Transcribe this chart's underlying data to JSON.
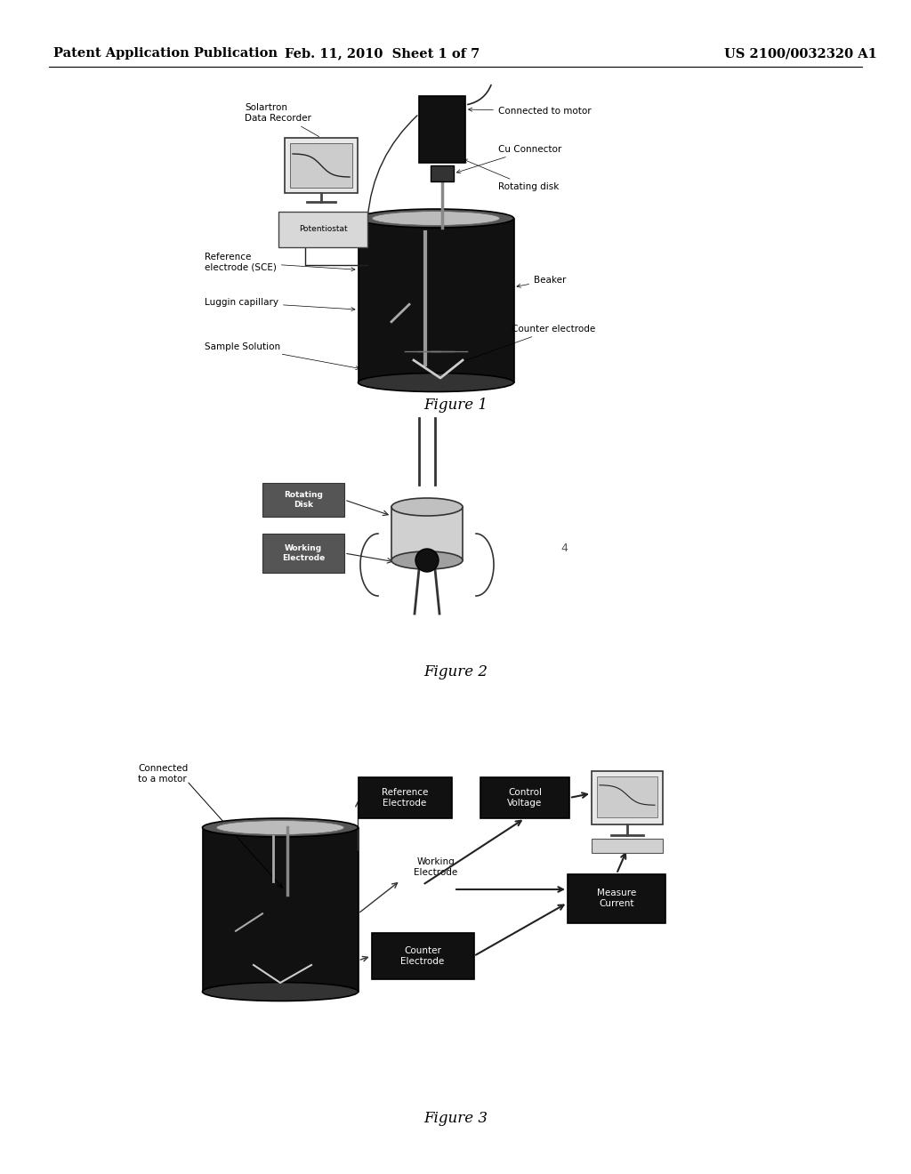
{
  "background_color": "#ffffff",
  "header_left": "Patent Application Publication",
  "header_center": "Feb. 11, 2010  Sheet 1 of 7",
  "header_right": "US 2100/0032320 A1",
  "figure1_caption": "Figure 1",
  "figure2_caption": "Figure 2",
  "figure3_caption": "Figure 3",
  "text_color": "#000000",
  "header_fontsize": 10.5,
  "caption_fontsize": 12,
  "label_fontsize": 7.5
}
